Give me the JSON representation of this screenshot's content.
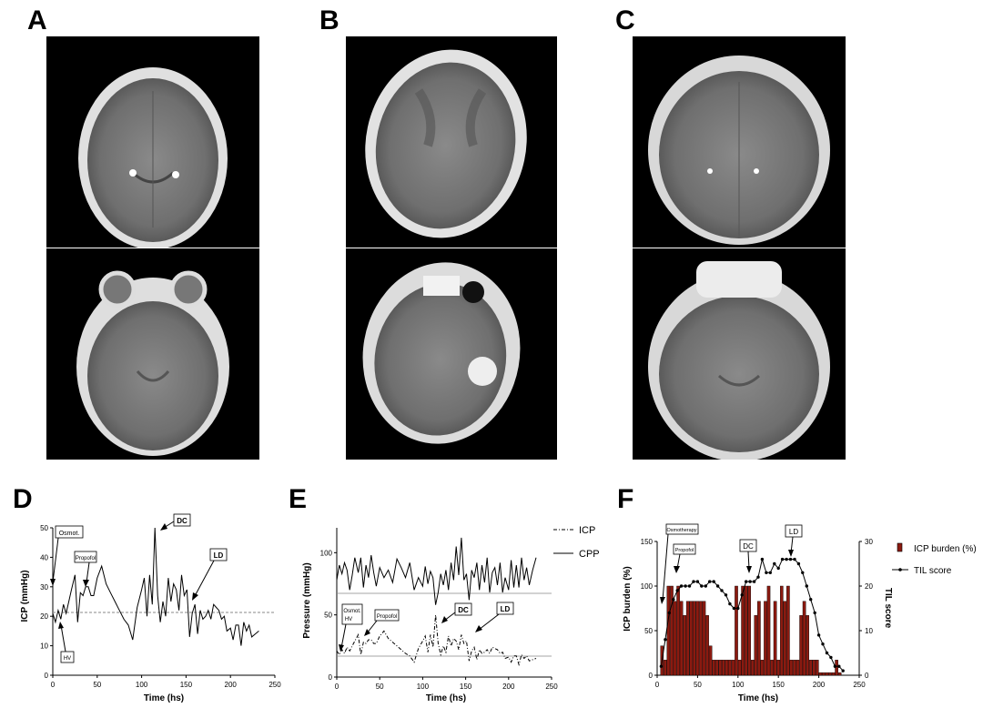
{
  "panels": {
    "A": "A",
    "B": "B",
    "C": "C",
    "D": "D",
    "E": "E",
    "F": "F"
  },
  "charts": {
    "D": {
      "type": "line",
      "xlabel": "Time (hs)",
      "ylabel": "ICP (mmHg)",
      "xticks": [
        "0",
        "50",
        "100",
        "150",
        "200",
        "250"
      ],
      "yticks": [
        "0",
        "10",
        "20",
        "30",
        "40",
        "50"
      ],
      "threshold": 20,
      "annotations": [
        "Osmot.",
        "HV",
        "Propofol",
        "DC",
        "LD"
      ]
    },
    "E": {
      "type": "line",
      "xlabel": "Time (hs)",
      "ylabel": "Pressure (mmHg)",
      "xticks": [
        "0",
        "50",
        "100",
        "150",
        "200",
        "250"
      ],
      "yticks": [
        "0",
        "50",
        "100"
      ],
      "legend": [
        "ICP",
        "CPP"
      ],
      "annotations": [
        "Osmot.",
        "HV",
        "Propofol",
        "DC",
        "LD"
      ]
    },
    "F": {
      "type": "bar",
      "xlabel": "Time (hs)",
      "ylabel_left": "ICP burden (%)",
      "ylabel_right": "TIL score",
      "xticks": [
        "0",
        "50",
        "100",
        "150",
        "200",
        "250"
      ],
      "yticks_left": [
        "0",
        "50",
        "100",
        "150"
      ],
      "yticks_right": [
        "0",
        "10",
        "20",
        "30"
      ],
      "legend": [
        "ICP burden (%)",
        "TIL score"
      ],
      "annotations": [
        "Osmotherapy",
        "Propofol",
        "DC",
        "LD"
      ]
    }
  },
  "chart_data": [
    {
      "type": "line",
      "panel": "D",
      "xlabel": "Time (hs)",
      "ylabel": "ICP (mmHg)",
      "xlim": [
        0,
        250
      ],
      "ylim": [
        0,
        50
      ],
      "threshold": 20,
      "series": [
        {
          "x": [
            0,
            3,
            6,
            9,
            12,
            15,
            18,
            21,
            25,
            28,
            31,
            34,
            37,
            40,
            43,
            46,
            50,
            55,
            60,
            65,
            70,
            75,
            80,
            85,
            90,
            95,
            100,
            103,
            106,
            109,
            112,
            115,
            118,
            121,
            124,
            127,
            130,
            133,
            136,
            139,
            142,
            145,
            148,
            151,
            154,
            157,
            160,
            163,
            166,
            169,
            172,
            175,
            178,
            181,
            184,
            187,
            190,
            193,
            196,
            200,
            203,
            206,
            209,
            212,
            215,
            218,
            221,
            224,
            228,
            232
          ],
          "y": [
            21,
            18,
            22,
            19,
            24,
            21,
            25,
            29,
            34,
            18,
            28,
            27,
            30,
            30,
            27,
            27,
            33,
            37,
            31,
            28,
            25,
            22,
            19,
            17,
            12,
            23,
            29,
            33,
            20,
            34,
            24,
            50,
            27,
            18,
            25,
            20,
            33,
            25,
            31,
            29,
            22,
            34,
            27,
            29,
            13,
            21,
            24,
            14,
            22,
            19,
            20,
            22,
            19,
            24,
            23,
            22,
            19,
            20,
            15,
            16,
            12,
            17,
            17,
            10,
            18,
            15,
            17,
            13,
            14,
            15
          ]
        }
      ]
    },
    {
      "type": "line",
      "panel": "E",
      "xlabel": "Time (hs)",
      "ylabel": "Pressure (mmHg)",
      "xlim": [
        0,
        250
      ],
      "ylim": [
        0,
        120
      ],
      "legend_position": "right",
      "series": [
        {
          "name": "ICP",
          "x": [
            0,
            3,
            6,
            9,
            12,
            15,
            18,
            21,
            25,
            28,
            31,
            34,
            37,
            40,
            43,
            46,
            50,
            55,
            60,
            65,
            70,
            75,
            80,
            85,
            90,
            95,
            100,
            103,
            106,
            109,
            112,
            115,
            118,
            121,
            124,
            127,
            130,
            133,
            136,
            139,
            142,
            145,
            148,
            151,
            154,
            157,
            160,
            163,
            166,
            169,
            172,
            175,
            178,
            181,
            184,
            187,
            190,
            193,
            196,
            200,
            203,
            206,
            209,
            212,
            215,
            218,
            221,
            224,
            228,
            232
          ],
          "y": [
            21,
            18,
            22,
            19,
            24,
            21,
            25,
            29,
            34,
            18,
            28,
            27,
            30,
            30,
            27,
            27,
            33,
            37,
            31,
            28,
            25,
            22,
            19,
            17,
            12,
            23,
            29,
            33,
            20,
            34,
            24,
            50,
            27,
            18,
            25,
            20,
            33,
            25,
            31,
            29,
            22,
            34,
            27,
            29,
            13,
            21,
            24,
            14,
            22,
            19,
            20,
            22,
            19,
            24,
            23,
            22,
            19,
            20,
            15,
            16,
            12,
            17,
            17,
            10,
            18,
            15,
            17,
            13,
            14,
            15
          ]
        },
        {
          "name": "CPP",
          "x": [
            0,
            3,
            6,
            9,
            12,
            15,
            18,
            21,
            25,
            28,
            31,
            34,
            37,
            40,
            43,
            46,
            50,
            55,
            60,
            65,
            70,
            75,
            80,
            85,
            90,
            95,
            100,
            103,
            106,
            109,
            112,
            115,
            118,
            121,
            124,
            127,
            130,
            133,
            136,
            139,
            142,
            145,
            148,
            151,
            154,
            157,
            160,
            163,
            166,
            169,
            172,
            175,
            178,
            181,
            184,
            187,
            190,
            193,
            196,
            200,
            203,
            206,
            209,
            212,
            215,
            218,
            221,
            224,
            228,
            232
          ],
          "y": [
            78,
            90,
            83,
            92,
            86,
            70,
            82,
            96,
            84,
            96,
            72,
            90,
            80,
            98,
            84,
            73,
            88,
            80,
            86,
            76,
            95,
            88,
            80,
            92,
            70,
            80,
            73,
            89,
            75,
            85,
            80,
            58,
            68,
            83,
            74,
            86,
            70,
            92,
            78,
            105,
            82,
            112,
            78,
            83,
            62,
            86,
            80,
            92,
            70,
            90,
            76,
            96,
            68,
            84,
            88,
            74,
            92,
            68,
            80,
            70,
            94,
            72,
            90,
            72,
            96,
            78,
            88,
            74,
            86,
            96
          ]
        }
      ]
    },
    {
      "type": "bar",
      "panel": "F",
      "xlabel": "Time (hs)",
      "ylabel": "ICP burden (%)",
      "ylabel_right": "TIL score",
      "xlim": [
        0,
        250
      ],
      "ylim": [
        0,
        150
      ],
      "ylim_right": [
        0,
        30
      ],
      "legend_position": "right",
      "series": [
        {
          "name": "ICP burden (%)",
          "type": "bar",
          "x": [
            6,
            10,
            14,
            18,
            22,
            26,
            30,
            34,
            38,
            42,
            46,
            50,
            54,
            58,
            62,
            66,
            70,
            74,
            78,
            82,
            86,
            90,
            94,
            98,
            102,
            106,
            110,
            114,
            118,
            122,
            126,
            130,
            134,
            138,
            142,
            146,
            150,
            154,
            158,
            162,
            166,
            170,
            174,
            178,
            182,
            186,
            190,
            194,
            198,
            202,
            206,
            210,
            214,
            218,
            222,
            226
          ],
          "y": [
            33,
            17,
            100,
            100,
            83,
            100,
            83,
            67,
            83,
            83,
            83,
            83,
            83,
            83,
            67,
            33,
            17,
            17,
            17,
            17,
            17,
            17,
            17,
            100,
            17,
            100,
            100,
            100,
            17,
            67,
            83,
            17,
            83,
            100,
            17,
            83,
            17,
            100,
            83,
            100,
            17,
            17,
            17,
            67,
            83,
            67,
            17,
            17,
            17,
            3,
            3,
            3,
            3,
            3,
            17,
            3
          ]
        },
        {
          "name": "TIL score",
          "type": "line",
          "x": [
            5,
            10,
            15,
            20,
            25,
            30,
            35,
            40,
            45,
            50,
            55,
            60,
            65,
            70,
            75,
            80,
            85,
            90,
            95,
            100,
            105,
            110,
            115,
            120,
            125,
            130,
            135,
            140,
            145,
            150,
            155,
            160,
            165,
            170,
            175,
            180,
            185,
            190,
            195,
            200,
            205,
            210,
            215,
            220,
            225,
            230
          ],
          "y": [
            2,
            8,
            14,
            17,
            19,
            20,
            20,
            20,
            21,
            21,
            20,
            20,
            21,
            21,
            20,
            19,
            18,
            16,
            15,
            15,
            18,
            21,
            21,
            21,
            22,
            26,
            23,
            23,
            25,
            24,
            26,
            26,
            26,
            26,
            25,
            23,
            20,
            17,
            14,
            9,
            7,
            5,
            4,
            2,
            2,
            1
          ]
        }
      ]
    }
  ]
}
